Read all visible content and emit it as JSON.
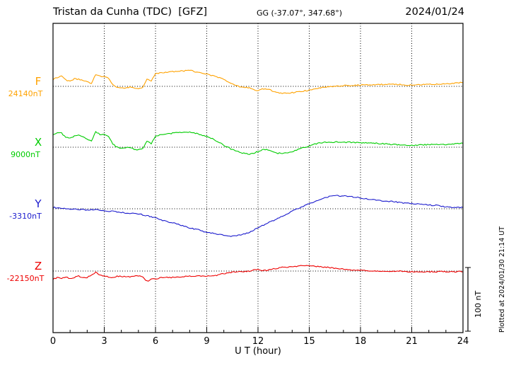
{
  "header": {
    "title": "Tristan da Cunha (TDC)  [GFZ]",
    "coords": "GG (-37.07°, 347.68°)",
    "date": "2024/01/24"
  },
  "axis": {
    "xlabel": "U T (hour)",
    "ticks": [
      0,
      3,
      6,
      9,
      12,
      15,
      18,
      21,
      24
    ],
    "xlim": [
      0,
      24
    ]
  },
  "scalebar": {
    "label": "100 nT",
    "nT": 100
  },
  "side_note": "Plotted at 2024/01/30 21:14 UT",
  "chart_data": {
    "type": "line",
    "title": "Magnetogram Tristan da Cunha (TDC) [GFZ] 2024/01/24",
    "xlabel": "U T (hour)",
    "xlim": [
      0,
      24
    ],
    "grid": "dotted vertical every 3 h, dotted baseline per component",
    "scalebar_nT": 100,
    "series": [
      {
        "name": "F",
        "baseline_nT": 24140,
        "baseline_label": "24140nT",
        "color": "#ffa200",
        "x": [
          0,
          0.25,
          0.5,
          0.75,
          1,
          1.25,
          1.5,
          1.75,
          2,
          2.25,
          2.5,
          2.75,
          3,
          3.25,
          3.5,
          3.75,
          4,
          4.25,
          4.5,
          4.75,
          5,
          5.25,
          5.5,
          5.75,
          6,
          6.5,
          7,
          7.5,
          8,
          8.5,
          9,
          9.5,
          10,
          10.5,
          11,
          11.5,
          12,
          12.25,
          12.5,
          12.75,
          13,
          13.5,
          14,
          14.5,
          15,
          15.5,
          16,
          17,
          18,
          19,
          20,
          21,
          22,
          23,
          24
        ],
        "dy_nT": [
          11,
          14,
          16,
          10,
          8,
          12,
          11,
          9,
          7,
          5,
          19,
          16,
          16,
          13,
          2,
          -1,
          -3,
          -2,
          -1,
          -3,
          -3,
          -2,
          12,
          8,
          20,
          22,
          23,
          24,
          25,
          22,
          19,
          16,
          11,
          4,
          -1,
          -2,
          -7,
          -4,
          -4,
          -6,
          -9,
          -11,
          -10,
          -8,
          -6,
          -3,
          -1,
          1,
          2,
          3,
          3,
          2,
          3,
          4,
          6
        ]
      },
      {
        "name": "X",
        "baseline_nT": 9000,
        "baseline_label": "9000nT",
        "color": "#00cc00",
        "x": [
          0,
          0.25,
          0.5,
          0.75,
          1,
          1.25,
          1.5,
          1.75,
          2,
          2.25,
          2.5,
          2.75,
          3,
          3.25,
          3.5,
          3.75,
          4,
          4.25,
          4.5,
          4.75,
          5,
          5.25,
          5.5,
          5.75,
          6,
          6.5,
          7,
          7.5,
          8,
          8.5,
          9,
          9.5,
          10,
          10.5,
          11,
          11.5,
          12,
          12.25,
          12.5,
          12.75,
          13,
          13.5,
          14,
          14.5,
          15,
          15.5,
          16,
          17,
          18,
          19,
          20,
          21,
          22,
          23,
          24
        ],
        "dy_nT": [
          20,
          23,
          22,
          15,
          14,
          18,
          20,
          16,
          13,
          10,
          24,
          20,
          20,
          17,
          5,
          0,
          -2,
          -1,
          0,
          -3,
          -4,
          -2,
          9,
          6,
          18,
          20,
          22,
          23,
          24,
          21,
          17,
          11,
          3,
          -4,
          -9,
          -11,
          -7,
          -4,
          -4,
          -6,
          -9,
          -10,
          -7,
          -2,
          2,
          6,
          8,
          8,
          7,
          6,
          4,
          3,
          4,
          4,
          6
        ]
      },
      {
        "name": "Y",
        "baseline_nT": -3310,
        "baseline_label": "-3310nT",
        "color": "#1a1acd",
        "x": [
          0,
          0.5,
          1,
          1.5,
          2,
          2.5,
          3,
          3.5,
          4,
          4.5,
          5,
          5.5,
          6,
          6.5,
          7,
          7.5,
          8,
          8.5,
          9,
          9.5,
          10,
          10.5,
          11,
          11.5,
          12,
          12.5,
          13,
          13.5,
          14,
          14.5,
          15,
          15.5,
          16,
          16.5,
          17,
          17.5,
          18,
          18.5,
          19,
          19.5,
          20,
          20.5,
          21,
          21.5,
          22,
          22.5,
          23,
          23.5,
          24
        ],
        "dy_nT": [
          2,
          1,
          0,
          -1,
          -2,
          -1,
          -3,
          -4,
          -6,
          -7,
          -8,
          -11,
          -14,
          -19,
          -22,
          -26,
          -30,
          -33,
          -37,
          -39,
          -42,
          -43,
          -41,
          -37,
          -30,
          -23,
          -17,
          -11,
          -4,
          2,
          8,
          13,
          18,
          21,
          20,
          19,
          17,
          15,
          13,
          12,
          11,
          9,
          8,
          7,
          6,
          5,
          3,
          2,
          2
        ]
      },
      {
        "name": "Z",
        "baseline_nT": -22150,
        "baseline_label": "-22150nT",
        "color": "#ee0000",
        "x": [
          0,
          0.25,
          0.5,
          0.75,
          1,
          1.25,
          1.5,
          1.75,
          2,
          2.25,
          2.5,
          2.75,
          3,
          3.25,
          3.5,
          3.75,
          4,
          4.25,
          4.5,
          4.75,
          5,
          5.25,
          5.5,
          5.75,
          6,
          6.5,
          7,
          7.5,
          8,
          8.5,
          9,
          9.5,
          10,
          10.5,
          11,
          11.5,
          12,
          12.25,
          12.5,
          12.75,
          13,
          13.5,
          14,
          14.5,
          15,
          15.5,
          16,
          17,
          18,
          19,
          20,
          21,
          22,
          23,
          24
        ],
        "dy_nT": [
          -13,
          -10,
          -11,
          -9,
          -12,
          -10,
          -8,
          -10,
          -10,
          -7,
          -2,
          -6,
          -8,
          -9,
          -10,
          -8,
          -8,
          -9,
          -9,
          -8,
          -8,
          -9,
          -16,
          -13,
          -12,
          -10,
          -10,
          -9,
          -8,
          -7,
          -8,
          -7,
          -4,
          -2,
          -1,
          0,
          3,
          1,
          1,
          2,
          4,
          6,
          7,
          8,
          8,
          7,
          6,
          3,
          1,
          0,
          0,
          -1,
          -1,
          -1,
          -1
        ]
      }
    ]
  }
}
